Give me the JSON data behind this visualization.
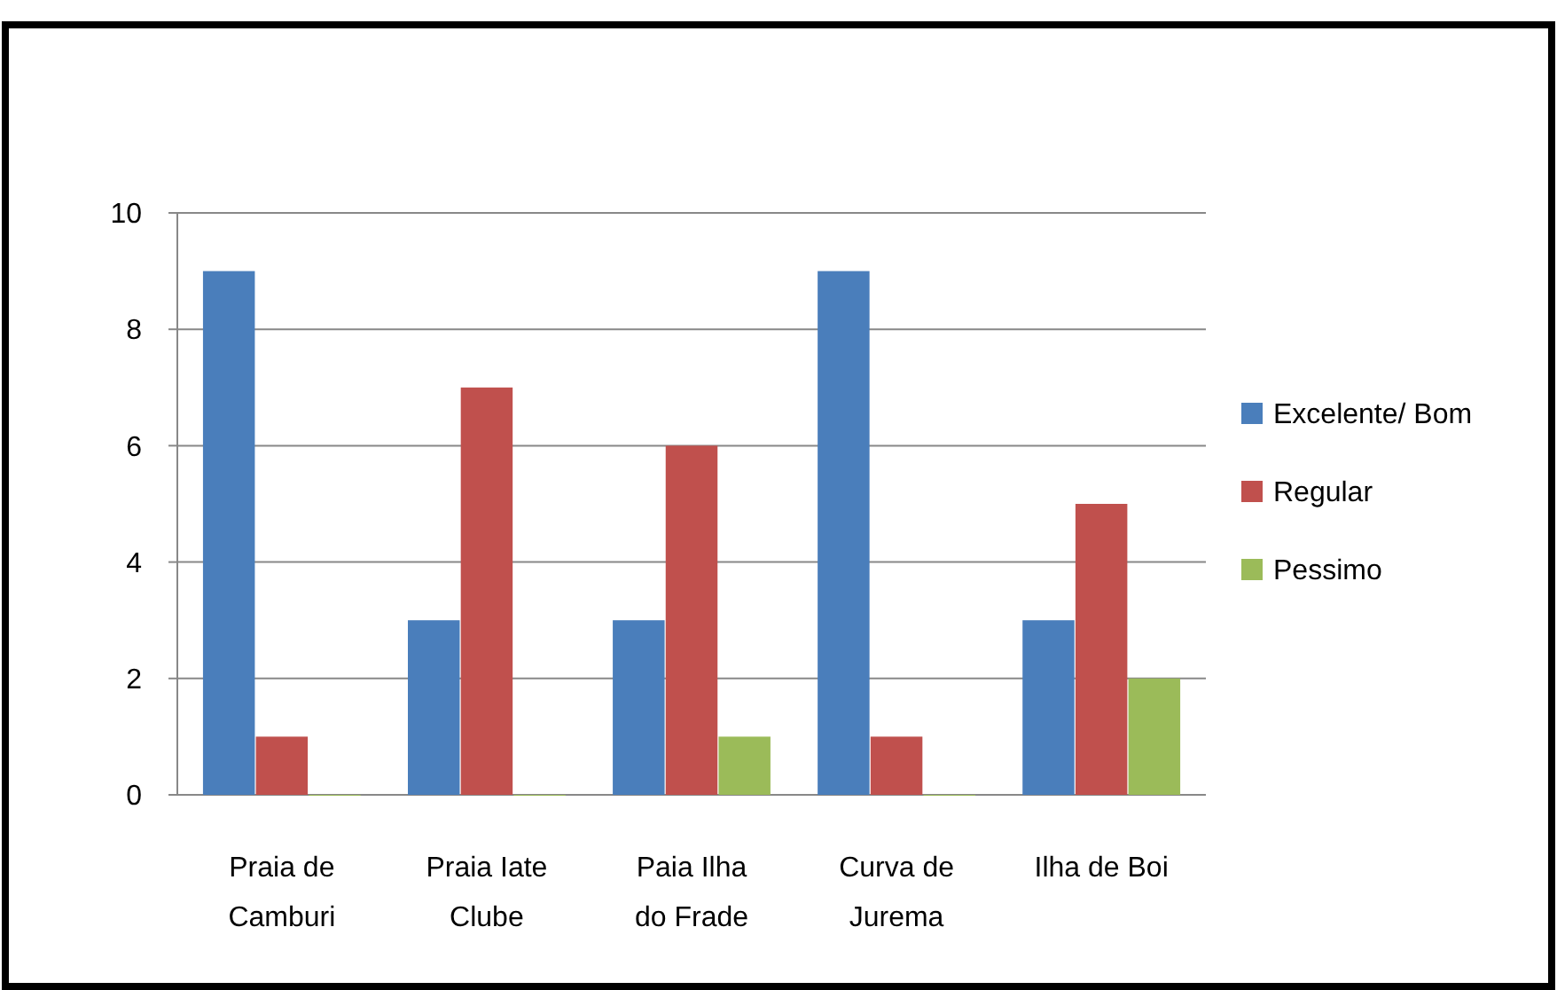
{
  "chart_data": {
    "type": "bar",
    "categories": [
      "Praia de Camburi",
      "Praia Iate Clube",
      "Paia Ilha do Frade",
      "Curva de Jurema",
      "Ilha de Boi"
    ],
    "series": [
      {
        "name": "Excelente/ Bom",
        "color": "#4a7ebb",
        "values": [
          9,
          3,
          3,
          9,
          3
        ]
      },
      {
        "name": "Regular",
        "color": "#c0504d",
        "values": [
          1,
          7,
          6,
          1,
          5
        ]
      },
      {
        "name": "Pessimo",
        "color": "#9bbb59",
        "values": [
          0,
          0,
          1,
          0,
          2
        ]
      }
    ],
    "ylim": [
      0,
      10
    ],
    "yticks": [
      0,
      2,
      4,
      6,
      8,
      10
    ],
    "grid": "y",
    "legend": "right"
  }
}
